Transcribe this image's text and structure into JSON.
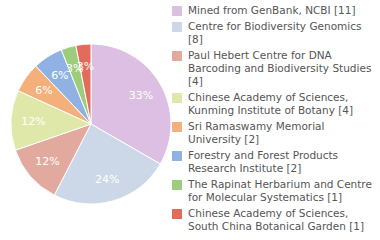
{
  "chart_data": {
    "type": "pie",
    "categories": [
      "Mined from GenBank, NCBI [11]",
      "Centre for Biodiversity Genomics [8]",
      "Paul Hebert Centre for DNA Barcoding and Biodiversity Studies [4]",
      "Chinese Academy of Sciences, Kunming Institute of Botany [4]",
      "Sri Ramaswamy Memorial University [2]",
      "Forestry and Forest Products Research Institute [2]",
      "The Rapinat Herbarium and Centre for Molecular Systematics [1]",
      "Chinese Academy of Sciences, South China Botanical Garden [1]"
    ],
    "values": [
      33,
      24,
      12,
      12,
      6,
      6,
      3,
      3
    ],
    "value_labels": [
      "33%",
      "24%",
      "12%",
      "12%",
      "6%",
      "6%",
      "3%",
      "3%"
    ],
    "colors": [
      "#dcbfe2",
      "#ccd8e8",
      "#e2aa9e",
      "#dfe7a9",
      "#f3b07a",
      "#90b2e2",
      "#9dcc7d",
      "#e26b5c"
    ],
    "data_labels": true,
    "legend": "right"
  }
}
